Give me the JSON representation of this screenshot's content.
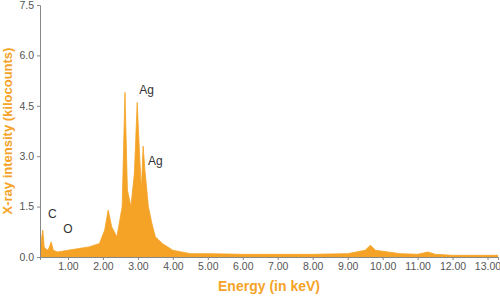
{
  "chart_data": {
    "type": "area",
    "x_label": "Energy (in keV)",
    "y_label": "X-ray intensity (kilocounts)",
    "color": "#f5a327",
    "x": [
      0.2,
      0.25,
      0.28,
      0.32,
      0.4,
      0.45,
      0.52,
      0.58,
      0.7,
      1.0,
      1.3,
      1.6,
      1.9,
      2.05,
      2.15,
      2.25,
      2.4,
      2.55,
      2.63,
      2.7,
      2.8,
      2.9,
      2.98,
      3.05,
      3.1,
      3.15,
      3.2,
      3.3,
      3.4,
      3.5,
      3.7,
      4.0,
      4.5,
      5.0,
      6.0,
      7.0,
      8.0,
      9.0,
      9.5,
      9.65,
      9.8,
      10.5,
      11.0,
      11.3,
      11.5,
      12.0,
      13.0,
      13.3
    ],
    "values": [
      0.1,
      0.6,
      0.8,
      0.3,
      0.2,
      0.25,
      0.45,
      0.2,
      0.15,
      0.2,
      0.25,
      0.3,
      0.4,
      0.8,
      1.4,
      0.9,
      0.6,
      1.5,
      4.9,
      2.0,
      1.5,
      2.5,
      4.6,
      3.0,
      2.0,
      3.3,
      2.6,
      1.5,
      1.0,
      0.6,
      0.4,
      0.2,
      0.1,
      0.1,
      0.08,
      0.08,
      0.08,
      0.1,
      0.2,
      0.35,
      0.2,
      0.1,
      0.08,
      0.15,
      0.08,
      0.05,
      0.05,
      0.05
    ],
    "xlim": [
      0.2,
      13.3
    ],
    "ylim": [
      0,
      7.5
    ],
    "xticks": [
      {
        "value": 1,
        "label": "1.00"
      },
      {
        "value": 2,
        "label": "2.00"
      },
      {
        "value": 3,
        "label": "3.00"
      },
      {
        "value": 4,
        "label": "4.00"
      },
      {
        "value": 5,
        "label": "5.00"
      },
      {
        "value": 6,
        "label": "6.00"
      },
      {
        "value": 7,
        "label": "7.00"
      },
      {
        "value": 8,
        "label": "8.00"
      },
      {
        "value": 9,
        "label": "9.00"
      },
      {
        "value": 10,
        "label": "10.00"
      },
      {
        "value": 11,
        "label": "11.00"
      },
      {
        "value": 12,
        "label": "12.00"
      },
      {
        "value": 13,
        "label": "13.00"
      }
    ],
    "yticks": [
      {
        "value": 0,
        "label": "0.0"
      },
      {
        "value": 1.5,
        "label": "1.5"
      },
      {
        "value": 3,
        "label": "3.0"
      },
      {
        "value": 4.5,
        "label": "4.5"
      },
      {
        "value": 6,
        "label": "6.0"
      },
      {
        "value": 7.5,
        "label": "7.5"
      }
    ],
    "grid": false,
    "annotations": [
      {
        "text": "C",
        "x": 0.55,
        "y": 1.15
      },
      {
        "text": "O",
        "x": 1.0,
        "y": 0.7
      },
      {
        "text": "Ag",
        "x": 3.25,
        "y": 4.85
      },
      {
        "text": "Ag",
        "x": 3.5,
        "y": 2.75
      }
    ]
  }
}
